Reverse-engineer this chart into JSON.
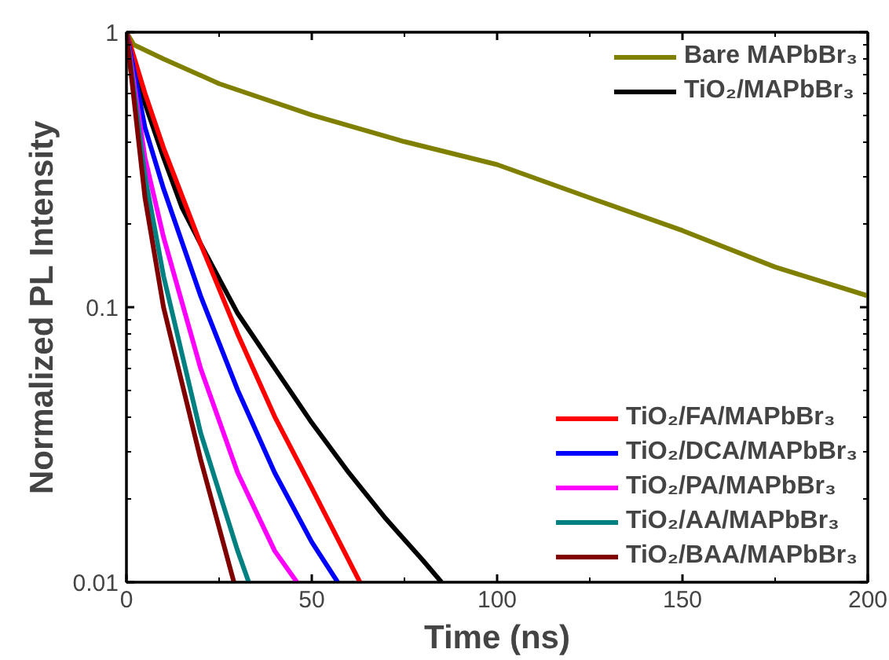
{
  "chart_data": {
    "type": "line",
    "xlabel": "Time (ns)",
    "ylabel": "Normalized PL Intensity",
    "log": "y",
    "xlim": [
      0,
      200
    ],
    "ylim": [
      0.01,
      1
    ],
    "xticks": [
      0,
      50,
      100,
      150,
      200
    ],
    "yticks": [
      {
        "value": 0.01,
        "label": "0.01"
      },
      {
        "value": 0.1,
        "label": "0.1"
      },
      {
        "value": 1,
        "label": "1"
      }
    ],
    "grid": false,
    "legend": "right",
    "series": [
      {
        "name": "Bare MAPbBr₃",
        "color": "#808000",
        "x": [
          0,
          2,
          10,
          25,
          50,
          75,
          100,
          125,
          150,
          175,
          200
        ],
        "values": [
          1,
          0.9,
          0.8,
          0.65,
          0.5,
          0.4,
          0.33,
          0.25,
          0.19,
          0.14,
          0.11
        ]
      },
      {
        "name": "TiO₂/MAPbBr₃",
        "color": "#000000",
        "x": [
          0,
          5,
          10,
          15,
          20,
          30,
          40,
          50,
          60,
          70,
          80,
          85
        ],
        "values": [
          1,
          0.55,
          0.35,
          0.23,
          0.17,
          0.095,
          0.06,
          0.038,
          0.025,
          0.017,
          0.012,
          0.01
        ]
      },
      {
        "name": "TiO₂/FA/MAPbBr₃",
        "color": "#ff0000",
        "x": [
          0,
          5,
          10,
          20,
          30,
          40,
          50,
          60,
          63
        ],
        "values": [
          1,
          0.6,
          0.38,
          0.17,
          0.08,
          0.04,
          0.022,
          0.012,
          0.01
        ]
      },
      {
        "name": "TiO₂/DCA/MAPbBr₃",
        "color": "#0000ff",
        "x": [
          0,
          5,
          10,
          20,
          30,
          40,
          50,
          57
        ],
        "values": [
          1,
          0.45,
          0.27,
          0.11,
          0.05,
          0.025,
          0.014,
          0.01
        ]
      },
      {
        "name": "TiO₂/PA/MAPbBr₃",
        "color": "#ff00ff",
        "x": [
          0,
          5,
          10,
          20,
          30,
          40,
          46
        ],
        "values": [
          1,
          0.35,
          0.18,
          0.06,
          0.025,
          0.013,
          0.01
        ]
      },
      {
        "name": "TiO₂/AA/MAPbBr₃",
        "color": "#008080",
        "x": [
          0,
          5,
          10,
          20,
          30,
          33
        ],
        "values": [
          1,
          0.3,
          0.13,
          0.035,
          0.013,
          0.01
        ]
      },
      {
        "name": "TiO₂/BAA/MAPbBr₃",
        "color": "#800000",
        "x": [
          0,
          5,
          10,
          20,
          29
        ],
        "values": [
          1,
          0.25,
          0.1,
          0.028,
          0.01
        ]
      }
    ]
  }
}
